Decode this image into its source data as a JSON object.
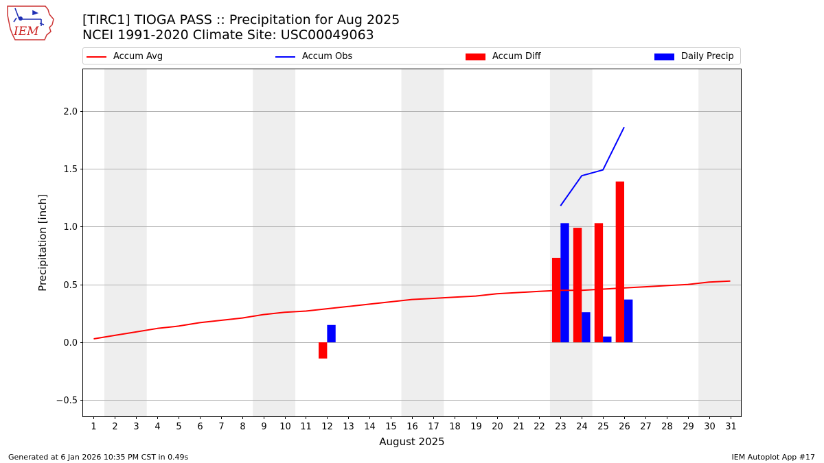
{
  "titles": {
    "line1": "[TIRC1] TIOGA PASS :: Precipitation for Aug 2025",
    "line2": "NCEI 1991-2020 Climate Site: USC00049063"
  },
  "logo": {
    "text": "IEM",
    "icon": "iem-iowa-logo-icon"
  },
  "footer": {
    "generated": "Generated at 6 Jan 2026 10:35 PM CST in 0.49s",
    "app": "IEM Autoplot App #17"
  },
  "legend": [
    {
      "label": "Accum Avg",
      "kind": "line",
      "color": "#ff0000"
    },
    {
      "label": "Accum Obs",
      "kind": "line",
      "color": "#0000ff"
    },
    {
      "label": "Accum Diff",
      "kind": "bar",
      "color": "#ff0000"
    },
    {
      "label": "Daily Precip",
      "kind": "bar",
      "color": "#0000ff"
    }
  ],
  "chart_data": {
    "type": "bar",
    "xlabel": "August 2025",
    "ylabel": "Precipitation [inch]",
    "xlim": [
      0.5,
      31.5
    ],
    "ylim": [
      -0.64,
      2.36
    ],
    "yticks": [
      -0.5,
      0.0,
      0.5,
      1.0,
      1.5,
      2.0
    ],
    "ytick_labels": [
      "−0.5",
      "0.0",
      "0.5",
      "1.0",
      "1.5",
      "2.0"
    ],
    "x": [
      1,
      2,
      3,
      4,
      5,
      6,
      7,
      8,
      9,
      10,
      11,
      12,
      13,
      14,
      15,
      16,
      17,
      18,
      19,
      20,
      21,
      22,
      23,
      24,
      25,
      26,
      27,
      28,
      29,
      30,
      31
    ],
    "grid": "horizontal",
    "weekend_bands": [
      [
        1.5,
        3.5
      ],
      [
        8.5,
        10.5
      ],
      [
        15.5,
        17.5
      ],
      [
        22.5,
        24.5
      ],
      [
        29.5,
        31.5
      ]
    ],
    "colors": {
      "avg": "#ff0000",
      "obs": "#0000ff",
      "diff": "#ff0000",
      "daily": "#0000ff",
      "band": "#eeeeee",
      "grid": "#b0b0b0"
    },
    "series": [
      {
        "name": "Accum Avg",
        "kind": "line",
        "x": [
          1,
          2,
          3,
          4,
          5,
          6,
          7,
          8,
          9,
          10,
          11,
          12,
          13,
          14,
          15,
          16,
          17,
          18,
          19,
          20,
          21,
          22,
          23,
          24,
          25,
          26,
          27,
          28,
          29,
          30,
          31
        ],
        "values": [
          0.03,
          0.06,
          0.09,
          0.12,
          0.14,
          0.17,
          0.19,
          0.21,
          0.24,
          0.26,
          0.27,
          0.29,
          0.31,
          0.33,
          0.35,
          0.37,
          0.38,
          0.39,
          0.4,
          0.42,
          0.43,
          0.44,
          0.45,
          0.45,
          0.46,
          0.47,
          0.48,
          0.49,
          0.5,
          0.52,
          0.53
        ]
      },
      {
        "name": "Accum Obs",
        "kind": "line",
        "x": [
          23,
          24,
          25,
          26
        ],
        "values": [
          1.18,
          1.44,
          1.49,
          1.86
        ]
      },
      {
        "name": "Accum Diff",
        "kind": "bar",
        "x": [
          12,
          23,
          24,
          25,
          26
        ],
        "values": [
          -0.14,
          0.73,
          0.99,
          1.03,
          1.39
        ]
      },
      {
        "name": "Daily Precip",
        "kind": "bar",
        "x": [
          12,
          23,
          24,
          25,
          26
        ],
        "values": [
          0.15,
          1.03,
          0.26,
          0.05,
          0.37
        ]
      }
    ]
  }
}
